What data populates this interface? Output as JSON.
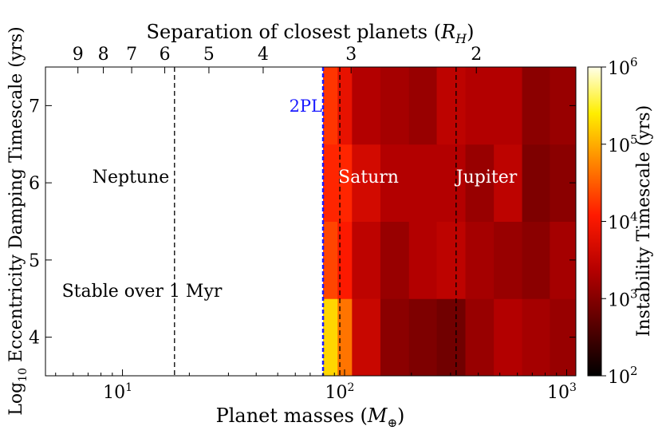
{
  "chart_data": {
    "type": "heatmap",
    "title": "Separation of closest planets (R_H)",
    "top_axis": {
      "label_prefix": "Separation of closest planets (",
      "label_symbol": "R",
      "label_subscript": "H",
      "label_suffix": ")",
      "ticks": [
        {
          "label": "9",
          "mass": 6.3
        },
        {
          "label": "8",
          "mass": 8.2
        },
        {
          "label": "7",
          "mass": 11.0
        },
        {
          "label": "6",
          "mass": 15.5
        },
        {
          "label": "5",
          "mass": 24.5
        },
        {
          "label": "4",
          "mass": 43.0
        },
        {
          "label": "3",
          "mass": 107.0
        },
        {
          "label": "2",
          "mass": 392.0
        }
      ]
    },
    "xlabel_prefix": "Planet masses (",
    "xlabel_symbol": "M",
    "xlabel_subscript": "⊕",
    "xlabel_suffix": ")",
    "x_scale": "log",
    "xlim": [
      4.5,
      1100
    ],
    "x_ticks": [
      {
        "base": "10",
        "exp": "1",
        "value": 10
      },
      {
        "base": "10",
        "exp": "2",
        "value": 100
      },
      {
        "base": "10",
        "exp": "3",
        "value": 1000
      }
    ],
    "ylabel_prefix": "Log",
    "ylabel_subscript": "10",
    "ylabel_suffix": " Eccentricity Damping Timescale (yrs)",
    "ylim": [
      3.5,
      7.5
    ],
    "y_ticks": [
      "4",
      "5",
      "6",
      "7"
    ],
    "colorbar": {
      "label": "Instability Timescale (yrs)",
      "scale": "log",
      "range_exp": [
        2,
        6
      ],
      "ticks": [
        {
          "base": "10",
          "exp": "2"
        },
        {
          "base": "10",
          "exp": "3"
        },
        {
          "base": "10",
          "exp": "4"
        },
        {
          "base": "10",
          "exp": "5"
        },
        {
          "base": "10",
          "exp": "6"
        }
      ]
    },
    "stable_region_label": "Stable over 1 Myr",
    "mass_column_edges": [
      80,
      93,
      108,
      145,
      195,
      260,
      350,
      470,
      630,
      840,
      1100
    ],
    "row_edges": [
      3.5,
      4.5,
      5.5,
      6.5,
      7.5
    ],
    "log_instability_timescale": [
      [
        5.25,
        4.65,
        3.55,
        3.05,
        2.95,
        2.85,
        3.15,
        3.35,
        3.25,
        3.15
      ],
      [
        4.35,
        4.05,
        3.45,
        3.15,
        3.35,
        3.45,
        3.25,
        3.15,
        3.05,
        3.25
      ],
      [
        4.15,
        4.15,
        3.65,
        3.35,
        3.35,
        3.35,
        3.15,
        3.45,
        2.95,
        3.05
      ],
      [
        4.25,
        3.85,
        3.35,
        3.25,
        3.15,
        3.45,
        3.35,
        3.35,
        3.05,
        3.15
      ]
    ],
    "reference_lines": [
      {
        "label": "Neptune",
        "mass": 17.15,
        "color": "#000000",
        "style": "dashed"
      },
      {
        "label": "Saturn",
        "mass": 95.2,
        "color": "#000000",
        "style": "dashed"
      },
      {
        "label": "Jupiter",
        "mass": 317.8,
        "color": "#000000",
        "style": "dashed"
      },
      {
        "label": "2PL",
        "mass": 80,
        "color": "#1a1aff",
        "style": "dashed"
      }
    ],
    "colors": {
      "cmap": [
        "#000000",
        "#5a0000",
        "#b40000",
        "#ff1a00",
        "#ff8c00",
        "#ffee00",
        "#ffffe8"
      ],
      "dark_text": "#000000",
      "light_text": "#ffffff",
      "boundary": "#1a1aff"
    }
  }
}
